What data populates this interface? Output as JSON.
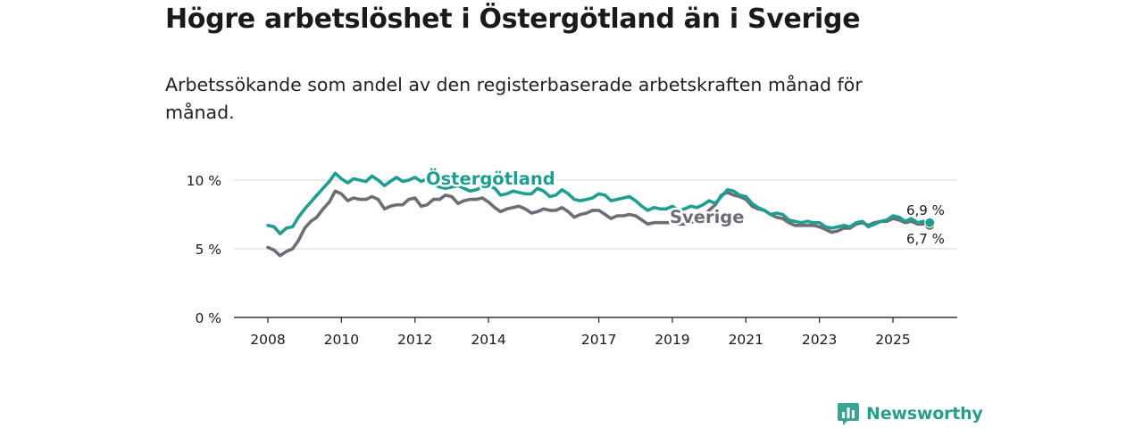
{
  "title": "Högre arbetslöshet i Östergötland än i Sverige",
  "subtitle": "Arbetssökande som andel av den registerbaserade arbetskraften månad för månad.",
  "brand": {
    "name": "Newsworthy",
    "logo_icon": "newsworthy-bar-chart-icon"
  },
  "colors": {
    "ostergotland": "#1f9e8f",
    "sverige": "#6f6c75",
    "grid": "#d6d6d6",
    "axis": "#333333"
  },
  "chart_data": {
    "type": "line",
    "title": "Högre arbetslöshet i Östergötland än i Sverige",
    "xlabel": "",
    "ylabel": "",
    "ylim": [
      0,
      11
    ],
    "xlim": [
      2007.6,
      2026.9
    ],
    "yticks": [
      0,
      5,
      10
    ],
    "ytick_labels": [
      "0 %",
      "5 %",
      "10 %"
    ],
    "xticks": [
      2008,
      2010,
      2012,
      2014,
      2017,
      2019,
      2021,
      2023,
      2025
    ],
    "xtick_labels": [
      "2008",
      "2010",
      "2012",
      "2014",
      "2017",
      "2019",
      "2021",
      "2023",
      "2025"
    ],
    "grid": true,
    "series": [
      {
        "name": "Östergötland",
        "label": "Östergötland",
        "end_label": "6,9 %",
        "x": [
          2008.0,
          2008.17,
          2008.33,
          2008.5,
          2008.67,
          2008.83,
          2009.0,
          2009.17,
          2009.33,
          2009.5,
          2009.67,
          2009.83,
          2010.0,
          2010.17,
          2010.33,
          2010.5,
          2010.67,
          2010.83,
          2011.0,
          2011.17,
          2011.33,
          2011.5,
          2011.67,
          2011.83,
          2012.0,
          2012.17,
          2012.33,
          2012.5,
          2012.67,
          2012.83,
          2013.0,
          2013.17,
          2013.33,
          2013.5,
          2013.67,
          2013.83,
          2014.0,
          2014.17,
          2014.33,
          2014.5,
          2014.67,
          2014.83,
          2015.0,
          2015.17,
          2015.33,
          2015.5,
          2015.67,
          2015.83,
          2016.0,
          2016.17,
          2016.33,
          2016.5,
          2016.67,
          2016.83,
          2017.0,
          2017.17,
          2017.33,
          2017.5,
          2017.67,
          2017.83,
          2018.0,
          2018.17,
          2018.33,
          2018.5,
          2018.67,
          2018.83,
          2019.0,
          2019.17,
          2019.33,
          2019.5,
          2019.67,
          2019.83,
          2020.0,
          2020.17,
          2020.33,
          2020.5,
          2020.67,
          2020.83,
          2021.0,
          2021.17,
          2021.33,
          2021.5,
          2021.67,
          2021.83,
          2022.0,
          2022.17,
          2022.33,
          2022.5,
          2022.67,
          2022.83,
          2023.0,
          2023.17,
          2023.33,
          2023.5,
          2023.67,
          2023.83,
          2024.0,
          2024.17,
          2024.33,
          2024.5,
          2024.67,
          2024.83,
          2025.0,
          2025.17,
          2025.33,
          2025.5,
          2025.67,
          2025.83,
          2026.0
        ],
        "values": [
          6.7,
          6.6,
          6.1,
          6.5,
          6.6,
          7.3,
          7.9,
          8.4,
          8.9,
          9.4,
          9.9,
          10.5,
          10.1,
          9.8,
          10.1,
          10.0,
          9.9,
          10.3,
          10.0,
          9.6,
          9.9,
          10.2,
          9.9,
          10.0,
          10.2,
          9.9,
          10.1,
          9.7,
          9.5,
          9.4,
          9.5,
          9.6,
          9.4,
          9.2,
          9.3,
          9.5,
          9.6,
          9.4,
          8.9,
          9.0,
          9.2,
          9.1,
          9.0,
          9.0,
          9.4,
          9.2,
          8.8,
          8.9,
          9.3,
          9.0,
          8.6,
          8.5,
          8.6,
          8.7,
          9.0,
          8.9,
          8.5,
          8.6,
          8.7,
          8.8,
          8.5,
          8.1,
          7.8,
          8.0,
          7.9,
          7.9,
          8.1,
          7.8,
          7.9,
          8.1,
          8.0,
          8.2,
          8.5,
          8.3,
          8.8,
          9.3,
          9.2,
          8.9,
          8.8,
          8.3,
          8.0,
          7.8,
          7.5,
          7.6,
          7.5,
          7.1,
          7.0,
          6.9,
          7.0,
          6.9,
          6.9,
          6.6,
          6.5,
          6.6,
          6.7,
          6.6,
          6.9,
          7.0,
          6.6,
          6.8,
          7.0,
          7.1,
          7.4,
          7.3,
          7.0,
          7.2,
          6.9,
          7.0,
          6.9
        ]
      },
      {
        "name": "Sverige",
        "label": "Sverige",
        "end_label": "6,7 %",
        "x": [
          2008.0,
          2008.17,
          2008.33,
          2008.5,
          2008.67,
          2008.83,
          2009.0,
          2009.17,
          2009.33,
          2009.5,
          2009.67,
          2009.83,
          2010.0,
          2010.17,
          2010.33,
          2010.5,
          2010.67,
          2010.83,
          2011.0,
          2011.17,
          2011.33,
          2011.5,
          2011.67,
          2011.83,
          2012.0,
          2012.17,
          2012.33,
          2012.5,
          2012.67,
          2012.83,
          2013.0,
          2013.17,
          2013.33,
          2013.5,
          2013.67,
          2013.83,
          2014.0,
          2014.17,
          2014.33,
          2014.5,
          2014.67,
          2014.83,
          2015.0,
          2015.17,
          2015.33,
          2015.5,
          2015.67,
          2015.83,
          2016.0,
          2016.17,
          2016.33,
          2016.5,
          2016.67,
          2016.83,
          2017.0,
          2017.17,
          2017.33,
          2017.5,
          2017.67,
          2017.83,
          2018.0,
          2018.17,
          2018.33,
          2018.5,
          2018.67,
          2018.83,
          2019.0,
          2019.17,
          2019.33,
          2019.5,
          2019.67,
          2019.83,
          2020.0,
          2020.17,
          2020.33,
          2020.5,
          2020.67,
          2020.83,
          2021.0,
          2021.17,
          2021.33,
          2021.5,
          2021.67,
          2021.83,
          2022.0,
          2022.17,
          2022.33,
          2022.5,
          2022.67,
          2022.83,
          2023.0,
          2023.17,
          2023.33,
          2023.5,
          2023.67,
          2023.83,
          2024.0,
          2024.17,
          2024.33,
          2024.5,
          2024.67,
          2024.83,
          2025.0,
          2025.17,
          2025.33,
          2025.5,
          2025.67,
          2025.83,
          2026.0
        ],
        "values": [
          5.1,
          4.9,
          4.5,
          4.8,
          5.0,
          5.6,
          6.5,
          7.0,
          7.3,
          7.9,
          8.4,
          9.2,
          9.0,
          8.5,
          8.7,
          8.6,
          8.6,
          8.8,
          8.6,
          7.9,
          8.1,
          8.2,
          8.2,
          8.6,
          8.7,
          8.1,
          8.2,
          8.6,
          8.6,
          8.9,
          8.8,
          8.3,
          8.5,
          8.6,
          8.6,
          8.7,
          8.4,
          8.0,
          7.7,
          7.9,
          8.0,
          8.1,
          7.9,
          7.6,
          7.7,
          7.9,
          7.8,
          7.8,
          8.0,
          7.7,
          7.3,
          7.5,
          7.6,
          7.8,
          7.8,
          7.5,
          7.2,
          7.4,
          7.4,
          7.5,
          7.4,
          7.1,
          6.8,
          6.9,
          6.9,
          6.9,
          6.9,
          6.8,
          6.8,
          6.9,
          7.1,
          7.3,
          7.8,
          8.2,
          8.9,
          9.1,
          8.9,
          8.8,
          8.6,
          8.1,
          7.9,
          7.8,
          7.5,
          7.3,
          7.2,
          6.9,
          6.7,
          6.7,
          6.7,
          6.7,
          6.6,
          6.4,
          6.2,
          6.3,
          6.5,
          6.5,
          6.8,
          6.9,
          6.7,
          6.9,
          7.0,
          7.0,
          7.2,
          7.1,
          6.9,
          7.0,
          6.8,
          6.8,
          6.7
        ]
      }
    ]
  }
}
